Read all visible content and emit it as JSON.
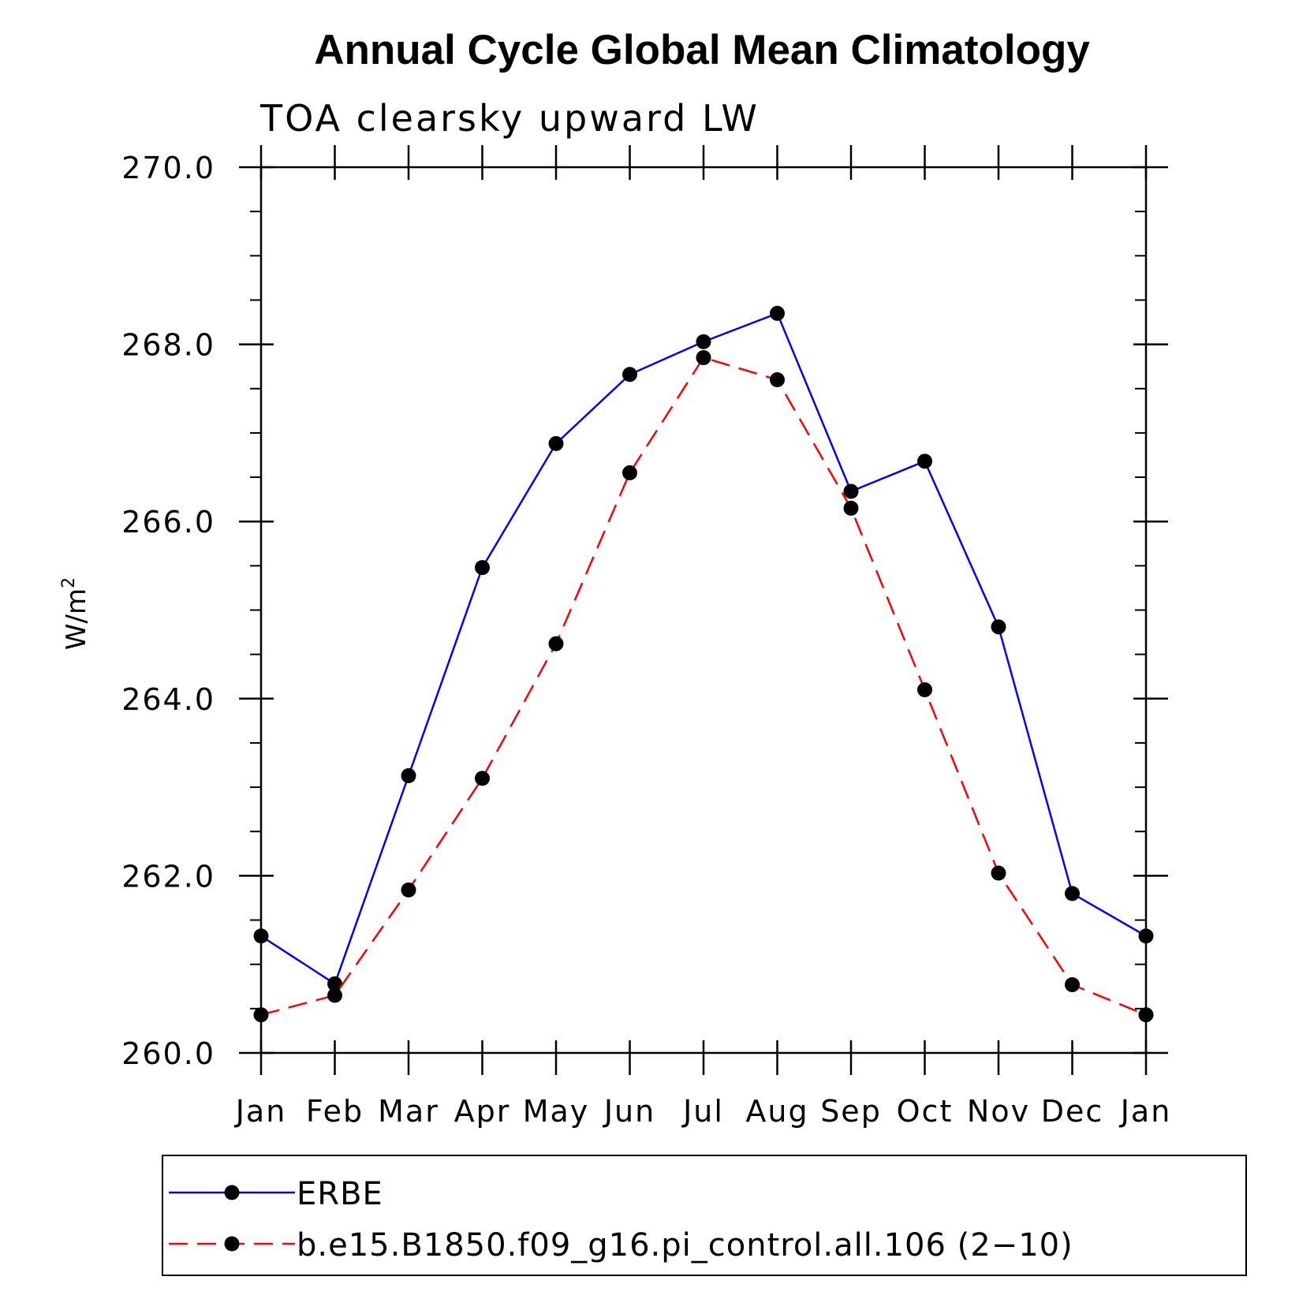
{
  "chart_data": {
    "type": "line",
    "title": "Annual Cycle Global Mean Climatology",
    "subtitle": "TOA clearsky upward LW",
    "ylabel": "W/m",
    "ylabel_sup": "2",
    "xlabel": "",
    "categories": [
      "Jan",
      "Feb",
      "Mar",
      "Apr",
      "May",
      "Jun",
      "Jul",
      "Aug",
      "Sep",
      "Oct",
      "Nov",
      "Dec",
      "Jan"
    ],
    "ylim": [
      260.0,
      270.0
    ],
    "yticks": [
      "260.0",
      "262.0",
      "264.0",
      "266.0",
      "268.0",
      "270.0"
    ],
    "grid": false,
    "legend_position": "bottom",
    "series": [
      {
        "name": "ERBE",
        "color": "#0000ff",
        "dash": "solid",
        "values": [
          261.32,
          260.78,
          263.13,
          265.48,
          266.88,
          267.66,
          268.03,
          268.35,
          266.34,
          266.68,
          264.81,
          261.8,
          261.32
        ]
      },
      {
        "name": "b.e15.B1850.f09_g16.pi_control.all.106 (2−10)",
        "color": "#ff0000",
        "dash": "dashed",
        "values": [
          260.43,
          260.65,
          261.84,
          263.1,
          264.62,
          266.55,
          267.85,
          267.6,
          266.15,
          264.1,
          262.03,
          260.77,
          260.43
        ]
      }
    ]
  }
}
